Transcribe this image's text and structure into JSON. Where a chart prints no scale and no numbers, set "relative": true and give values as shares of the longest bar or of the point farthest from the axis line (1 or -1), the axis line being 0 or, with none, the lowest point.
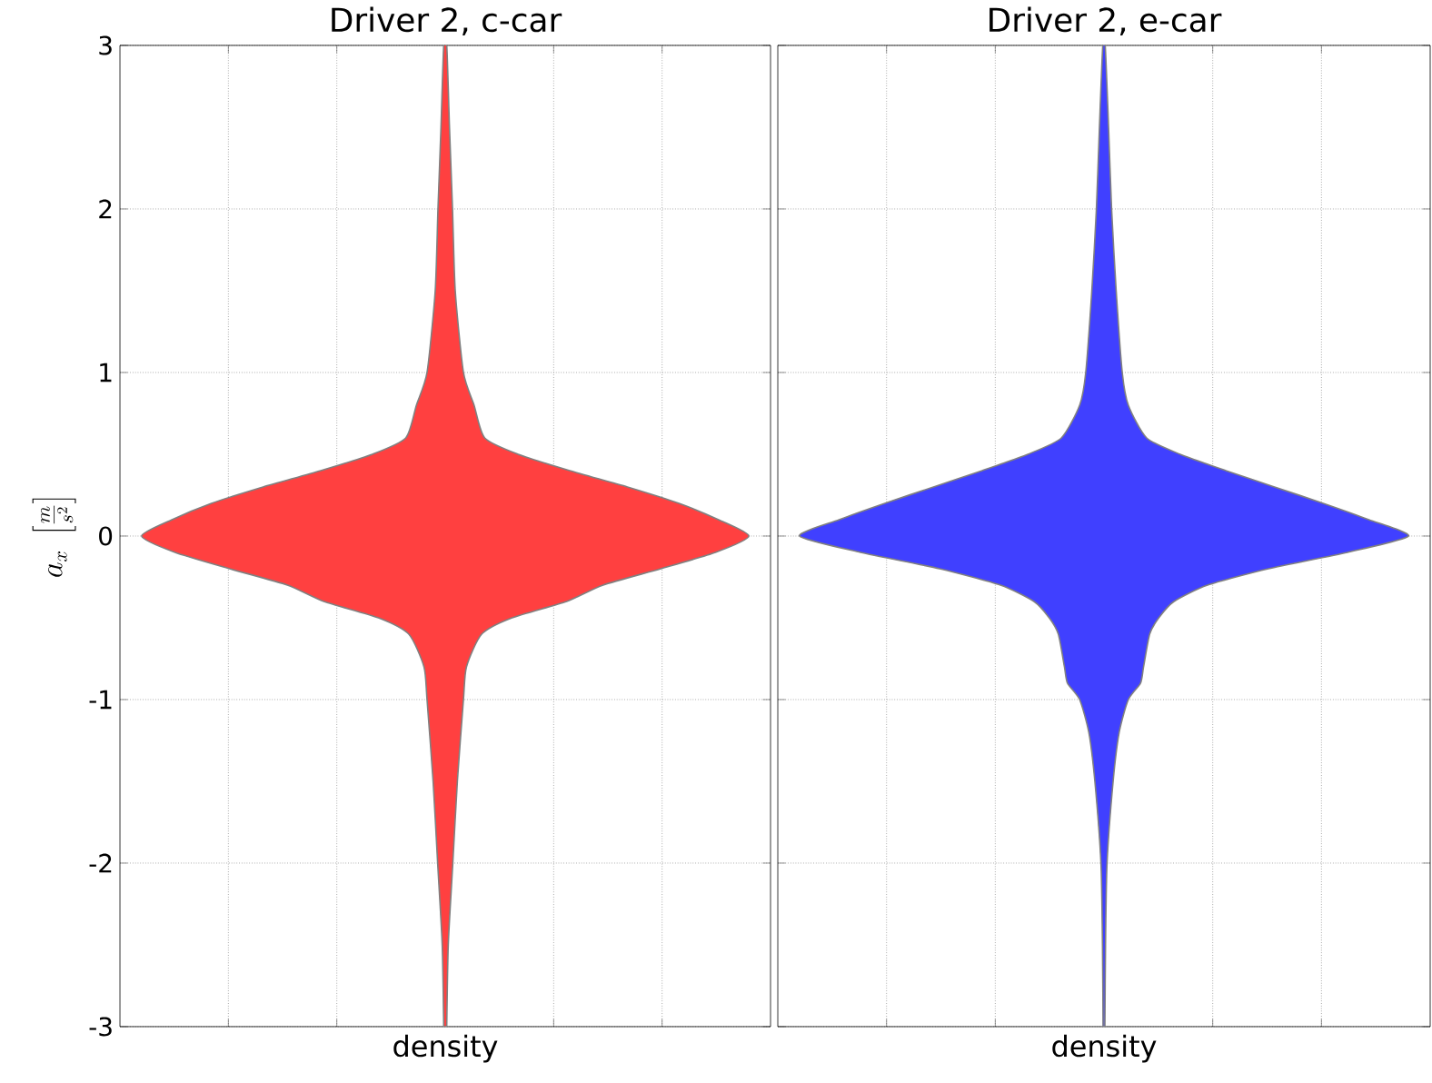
{
  "chart_data": [
    {
      "type": "area",
      "orientation": "horizontal",
      "relative": true,
      "title": "Driver 2, c-car",
      "xlabel": "density",
      "ylabel": "a_x\\ \\left[\\frac{m}{s^2}\\right]",
      "ylim": [
        -3,
        3
      ],
      "yticks": [
        -3,
        -2,
        -1,
        0,
        1,
        2,
        3
      ],
      "grid": true,
      "tick_labels": "y",
      "x": [
        -3,
        -2.5,
        -2,
        -1.5,
        -1,
        -0.8,
        -0.6,
        -0.5,
        -0.4,
        -0.3,
        -0.2,
        -0.1,
        0,
        0.1,
        0.2,
        0.3,
        0.4,
        0.5,
        0.6,
        0.8,
        1,
        1.5,
        2,
        2.5,
        3
      ],
      "series": [
        {
          "color": "#ff4040",
          "values": [
            0.005,
            0.01,
            0.025,
            0.04,
            0.06,
            0.07,
            0.12,
            0.22,
            0.4,
            0.52,
            0.71,
            0.89,
            1,
            0.9,
            0.77,
            0.6,
            0.41,
            0.24,
            0.13,
            0.095,
            0.06,
            0.033,
            0.024,
            0.014,
            0.005
          ]
        }
      ]
    },
    {
      "type": "area",
      "orientation": "horizontal",
      "relative": true,
      "title": "Driver 2, e-car",
      "xlabel": "density",
      "ylim": [
        -3,
        3
      ],
      "yticks": [
        -3,
        -2,
        -1,
        0,
        1,
        2,
        3
      ],
      "grid": true,
      "tick_labels": false,
      "x": [
        -3,
        -2.5,
        -2,
        -1.5,
        -1.2,
        -1,
        -0.9,
        -0.8,
        -0.6,
        -0.5,
        -0.4,
        -0.3,
        -0.2,
        -0.1,
        0,
        0.1,
        0.2,
        0.3,
        0.4,
        0.5,
        0.6,
        0.8,
        1,
        1.5,
        2,
        2.5,
        3
      ],
      "series": [
        {
          "color": "#4040ff",
          "values": [
            0.003,
            0.005,
            0.01,
            0.03,
            0.05,
            0.08,
            0.12,
            0.13,
            0.15,
            0.18,
            0.23,
            0.34,
            0.54,
            0.8,
            1,
            0.87,
            0.72,
            0.56,
            0.4,
            0.25,
            0.14,
            0.08,
            0.06,
            0.04,
            0.025,
            0.015,
            0.004
          ]
        }
      ]
    }
  ]
}
